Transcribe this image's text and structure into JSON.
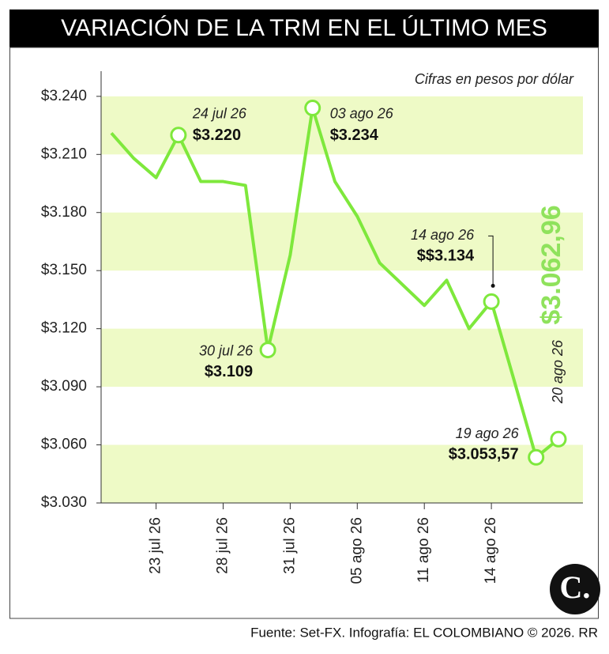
{
  "chart_data": {
    "type": "line",
    "title": "VARIACIÓN DE LA TRM EN EL ÚLTIMO MES",
    "subtitle": "Cifras en pesos por dólar",
    "source": "Fuente: Set-FX. Infografía: EL COLOMBIANO © 2026. RR",
    "logo": "C.",
    "categories": [
      null,
      null,
      "23 jul 26",
      null,
      null,
      "28 jul 26",
      null,
      null,
      "31 jul 26",
      null,
      null,
      "05 ago 26",
      null,
      null,
      "11 ago 26",
      null,
      null,
      "14 ago 26",
      null,
      null,
      null
    ],
    "series": [
      {
        "name": "TRM",
        "color": "#7ee83c",
        "values": [
          3221,
          3208,
          3198,
          3220,
          3196,
          3196,
          3194,
          3109,
          3158,
          3234,
          3196,
          3178,
          3154,
          3143,
          3132,
          3145,
          3120,
          3134,
          3094,
          3053.57,
          3062.96
        ],
        "value_labels": [
          null,
          null,
          null,
          "$3.220",
          null,
          null,
          null,
          "$3.109",
          null,
          "$3.234",
          null,
          null,
          null,
          null,
          null,
          null,
          null,
          "$$3.134",
          null,
          "$3.053,57",
          "$3.062,96"
        ],
        "point_labels": [
          null,
          null,
          null,
          "24 jul 26",
          null,
          null,
          null,
          "30 jul 26",
          null,
          "03 ago 26",
          null,
          null,
          null,
          null,
          null,
          null,
          null,
          "14 ago 26",
          null,
          "19 ago 26",
          "20 ago 26"
        ]
      }
    ],
    "ylim": [
      3030,
      3253
    ],
    "yticks": [
      {
        "value": 3030,
        "label": "$3.030"
      },
      {
        "value": 3060,
        "label": "$3.060"
      },
      {
        "value": 3090,
        "label": "$3.090"
      },
      {
        "value": 3120,
        "label": "$3.120"
      },
      {
        "value": 3150,
        "label": "$3.150"
      },
      {
        "value": 3180,
        "label": "$3.180"
      },
      {
        "value": 3210,
        "label": "$3.210"
      },
      {
        "value": 3240,
        "label": "$3.240"
      }
    ],
    "grid": "bands",
    "band_color": "#eefac6"
  }
}
